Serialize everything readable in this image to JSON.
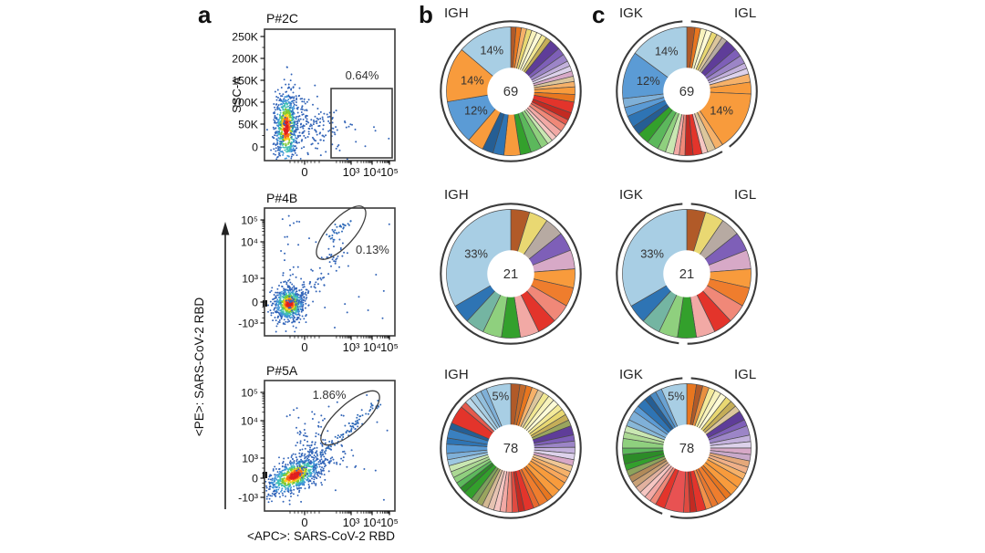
{
  "panel_letters": {
    "a": "a",
    "b": "b",
    "c": "c"
  },
  "chart_data": {
    "type": [
      "scatter",
      "pie"
    ],
    "flow_axis_labels": {
      "x": "<APC>: SARS-CoV-2 RBD",
      "y": "<PE>: SARS-CoV-2 RBD"
    },
    "flow_plots": [
      {
        "title": "P#2C",
        "y_axis_label": "SSC-A",
        "gate_label": "0.64%",
        "gate_shape": "rectangle",
        "y_ticks": [
          "250K",
          "200K",
          "150K",
          "100K",
          "50K",
          "0"
        ],
        "x_ticks": [
          "0",
          "10³",
          "10⁴",
          "10⁵"
        ]
      },
      {
        "title": "P#4B",
        "gate_label": "0.13%",
        "gate_shape": "ellipse",
        "y_ticks": [
          "10⁵",
          "10⁴",
          "10³",
          "0",
          "-10³"
        ],
        "x_ticks": [
          "0",
          "10³",
          "10⁴",
          "10⁵"
        ]
      },
      {
        "title": "P#5A",
        "gate_label": "1.86%",
        "gate_shape": "ellipse",
        "y_ticks": [
          "10⁵",
          "10⁴",
          "10³",
          "0",
          "-10³"
        ],
        "x_ticks": [
          "0",
          "10³",
          "10⁴",
          "10⁵"
        ]
      }
    ],
    "pie_headers": {
      "b": "IGH",
      "c_left": "IGK",
      "c_right": "IGL"
    },
    "pies": {
      "b1": {
        "center": "69",
        "ring": "full",
        "slices": [
          [
            1.4,
            "#b15a28"
          ],
          [
            1.4,
            "#e8761f"
          ],
          [
            1.4,
            "#f6b169"
          ],
          [
            1.4,
            "#e9d872"
          ],
          [
            1.4,
            "#f8f3bd"
          ],
          [
            1.4,
            "#fdfad6"
          ],
          [
            1.4,
            "#f1e793"
          ],
          [
            1.4,
            "#c5ae58"
          ],
          [
            2.9,
            "#5f3d99"
          ],
          [
            2,
            "#7e5fb8"
          ],
          [
            2,
            "#9c85c7"
          ],
          [
            1.4,
            "#c3b1dc"
          ],
          [
            1.4,
            "#ddd2eb"
          ],
          [
            1.4,
            "#d7a9c7"
          ],
          [
            1.4,
            "#dcc69c"
          ],
          [
            1.4,
            "#f6b169"
          ],
          [
            2,
            "#f89b3c"
          ],
          [
            2,
            "#e8761f"
          ],
          [
            2.9,
            "#e3342b"
          ],
          [
            2,
            "#c32a22"
          ],
          [
            1.4,
            "#e55a4e"
          ],
          [
            2,
            "#f08878"
          ],
          [
            2,
            "#f2a9a5"
          ],
          [
            1.4,
            "#f6c6c2"
          ],
          [
            1.4,
            "#c9e7b2"
          ],
          [
            2,
            "#8fd07e"
          ],
          [
            2.9,
            "#5cb85c"
          ],
          [
            2.9,
            "#33a02c"
          ],
          [
            4.3,
            "#f89b3c"
          ],
          [
            2.9,
            "#2e74b4"
          ],
          [
            2.9,
            "#255e94"
          ],
          [
            4.3,
            "#f89b3c"
          ],
          [
            11.6,
            "#5b9bd5",
            "12%"
          ],
          [
            14.5,
            "#f89b3c",
            "14%"
          ],
          [
            14.5,
            "#a8cee4",
            "14%",
            0.7
          ]
        ]
      },
      "c1": {
        "center": "69",
        "ring": "split",
        "split_deg": 146,
        "slices": [
          [
            2,
            "#b15a28"
          ],
          [
            1.4,
            "#e8761f"
          ],
          [
            1.4,
            "#f8f3bd"
          ],
          [
            1.4,
            "#fdfad6"
          ],
          [
            1.4,
            "#e9d872"
          ],
          [
            1.4,
            "#dcc69c"
          ],
          [
            1.4,
            "#b7aaa2"
          ],
          [
            2.9,
            "#5f3d99"
          ],
          [
            2,
            "#7e5fb8"
          ],
          [
            2,
            "#9c85c7"
          ],
          [
            1.4,
            "#c3b1dc"
          ],
          [
            1.4,
            "#ddd2eb"
          ],
          [
            2,
            "#f6b169"
          ],
          [
            2.9,
            "#f89b3c"
          ],
          [
            14.5,
            "#f89b3c",
            "14%"
          ],
          [
            2,
            "#f6b169"
          ],
          [
            2,
            "#dcc69c"
          ],
          [
            1.4,
            "#f6c6c2"
          ],
          [
            2.2,
            "#e3342b"
          ],
          [
            2,
            "#c32a22"
          ],
          [
            1.4,
            "#f08878"
          ],
          [
            1.4,
            "#f2a9a5"
          ],
          [
            2,
            "#c9e7b2"
          ],
          [
            2,
            "#8fd07e"
          ],
          [
            2.9,
            "#5cb85c"
          ],
          [
            2.9,
            "#33a02c"
          ],
          [
            2.2,
            "#255e94"
          ],
          [
            2.9,
            "#2e74b4"
          ],
          [
            2.2,
            "#5b9bd5"
          ],
          [
            2.2,
            "#7fb0d8"
          ],
          [
            11.6,
            "#5b9bd5",
            "12%"
          ],
          [
            14.5,
            "#a8cee4",
            "14%",
            0.7
          ]
        ]
      },
      "b2": {
        "center": "21",
        "ring": "full",
        "slices": [
          [
            4.76,
            "#b15a28"
          ],
          [
            4.76,
            "#e9d872"
          ],
          [
            4.76,
            "#b7aaa2"
          ],
          [
            4.76,
            "#7e5fb8"
          ],
          [
            4.76,
            "#d7a9c7"
          ],
          [
            4.76,
            "#f89b3c"
          ],
          [
            4.76,
            "#ef7d2d"
          ],
          [
            4.76,
            "#f08878"
          ],
          [
            4.76,
            "#e3342b"
          ],
          [
            4.76,
            "#f2a9a5"
          ],
          [
            4.76,
            "#33a02c"
          ],
          [
            4.76,
            "#8fd07e"
          ],
          [
            4.76,
            "#74b5a2"
          ],
          [
            4.76,
            "#2e74b4"
          ],
          [
            33.4,
            "#a8cee4",
            "33%"
          ]
        ]
      },
      "c2": {
        "center": "21",
        "ring": "split",
        "split_deg": 183,
        "slices": [
          [
            4.76,
            "#b15a28"
          ],
          [
            4.76,
            "#e9d872"
          ],
          [
            4.76,
            "#b7aaa2"
          ],
          [
            4.76,
            "#7e5fb8"
          ],
          [
            4.76,
            "#d7a9c7"
          ],
          [
            4.76,
            "#f89b3c"
          ],
          [
            4.76,
            "#ef7d2d"
          ],
          [
            4.76,
            "#f08878"
          ],
          [
            4.76,
            "#e3342b"
          ],
          [
            4.76,
            "#f2a9a5"
          ],
          [
            4.76,
            "#33a02c"
          ],
          [
            4.76,
            "#8fd07e"
          ],
          [
            4.76,
            "#74b5a2"
          ],
          [
            4.76,
            "#2e74b4"
          ],
          [
            33.4,
            "#a8cee4",
            "33%"
          ]
        ]
      },
      "b3": {
        "center": "78",
        "ring": "full",
        "slices": [
          [
            1.5,
            "#b15a28"
          ],
          [
            1,
            "#c46a2a"
          ],
          [
            1,
            "#e8761f"
          ],
          [
            1,
            "#f6b169"
          ],
          [
            1,
            "#dcc69c"
          ],
          [
            1,
            "#f1e793"
          ],
          [
            1,
            "#f8f3bd"
          ],
          [
            1,
            "#fdfad6"
          ],
          [
            1,
            "#f4ea9a"
          ],
          [
            1,
            "#e9d872"
          ],
          [
            1,
            "#c5ae58"
          ],
          [
            1,
            "#9aa55e"
          ],
          [
            1.5,
            "#5f3d99"
          ],
          [
            1,
            "#7e5fb8"
          ],
          [
            1,
            "#9c85c7"
          ],
          [
            1,
            "#c3b1dc"
          ],
          [
            1,
            "#ddd2eb"
          ],
          [
            1,
            "#d7a9c7"
          ],
          [
            1,
            "#f0c795"
          ],
          [
            1,
            "#f6b169"
          ],
          [
            1,
            "#f9a75b"
          ],
          [
            1.5,
            "#f89b3c"
          ],
          [
            1.5,
            "#f89b3c"
          ],
          [
            1,
            "#e8761f"
          ],
          [
            1.5,
            "#ef7d2d"
          ],
          [
            1,
            "#e8682e"
          ],
          [
            1.5,
            "#e3342b"
          ],
          [
            1,
            "#c32a22"
          ],
          [
            1,
            "#e04a40"
          ],
          [
            1,
            "#f08878"
          ],
          [
            1,
            "#f2a9a5"
          ],
          [
            1,
            "#f6c6c2"
          ],
          [
            1,
            "#e7c3b2"
          ],
          [
            1,
            "#d3b893"
          ],
          [
            1,
            "#9aa55e"
          ],
          [
            1,
            "#7ba05b"
          ],
          [
            1.5,
            "#33a02c"
          ],
          [
            1,
            "#2c8c28"
          ],
          [
            1,
            "#5cb85c"
          ],
          [
            1,
            "#8fd07e"
          ],
          [
            1,
            "#abd893"
          ],
          [
            1,
            "#c9e7b2"
          ],
          [
            1,
            "#9dc8e1"
          ],
          [
            1,
            "#7fb0d8"
          ],
          [
            1.5,
            "#5b9bd5"
          ],
          [
            1,
            "#2e74b4"
          ],
          [
            1.5,
            "#3a80c0"
          ],
          [
            1,
            "#255e94"
          ],
          [
            3,
            "#e3342b"
          ],
          [
            1,
            "#e55a4e"
          ],
          [
            1,
            "#bcd9ea"
          ],
          [
            1,
            "#a8cee4"
          ],
          [
            1,
            "#92bfdd"
          ],
          [
            1,
            "#7fb0d8"
          ],
          [
            4,
            "#a8cee4",
            "5%",
            0.82
          ]
        ]
      },
      "c3": {
        "center": "78",
        "ring": "split",
        "split_deg": 197,
        "slices": [
          [
            1.5,
            "#e8761f"
          ],
          [
            1,
            "#b15a28"
          ],
          [
            1,
            "#e89040"
          ],
          [
            1,
            "#f4ea9a"
          ],
          [
            1,
            "#f8f3bd"
          ],
          [
            1,
            "#fdfad6"
          ],
          [
            1,
            "#e9d872"
          ],
          [
            1,
            "#c5ae58"
          ],
          [
            1,
            "#dcc69c"
          ],
          [
            1.5,
            "#5f3d99"
          ],
          [
            1,
            "#7e5fb8"
          ],
          [
            1.5,
            "#9c85c7"
          ],
          [
            1,
            "#c3b1dc"
          ],
          [
            1,
            "#ddd2eb"
          ],
          [
            1,
            "#d7a9c7"
          ],
          [
            1,
            "#c9a9c9"
          ],
          [
            1,
            "#e5a87a"
          ],
          [
            1,
            "#f0b088"
          ],
          [
            1,
            "#f6b169"
          ],
          [
            1.5,
            "#f89b3c"
          ],
          [
            1.5,
            "#f89b3c"
          ],
          [
            1,
            "#e8761f"
          ],
          [
            1.5,
            "#ef7d2d"
          ],
          [
            1,
            "#e8782f"
          ],
          [
            1,
            "#f29049"
          ],
          [
            1.5,
            "#e3342b"
          ],
          [
            1,
            "#c32a22"
          ],
          [
            1,
            "#e04a40"
          ],
          [
            3,
            "#e85252"
          ],
          [
            1.5,
            "#e3342b"
          ],
          [
            1,
            "#f08878"
          ],
          [
            1,
            "#f2a9a5"
          ],
          [
            1,
            "#f6c6c2"
          ],
          [
            1,
            "#e2b19f"
          ],
          [
            1,
            "#c9a177"
          ],
          [
            1,
            "#b28a59"
          ],
          [
            1,
            "#8da35c"
          ],
          [
            1,
            "#33a02c"
          ],
          [
            1.5,
            "#2c8c28"
          ],
          [
            1,
            "#5cb85c"
          ],
          [
            1.5,
            "#8fd07e"
          ],
          [
            1,
            "#abd893"
          ],
          [
            1,
            "#c9e7b2"
          ],
          [
            1,
            "#88b8d8"
          ],
          [
            1.5,
            "#7fb0d8"
          ],
          [
            1,
            "#5b9bd5"
          ],
          [
            1.5,
            "#2e74b4"
          ],
          [
            1,
            "#255e94"
          ],
          [
            1,
            "#4a8ac2"
          ],
          [
            1,
            "#6aa2d2"
          ],
          [
            4,
            "#a8cee4",
            "5%",
            0.82
          ]
        ]
      }
    }
  }
}
